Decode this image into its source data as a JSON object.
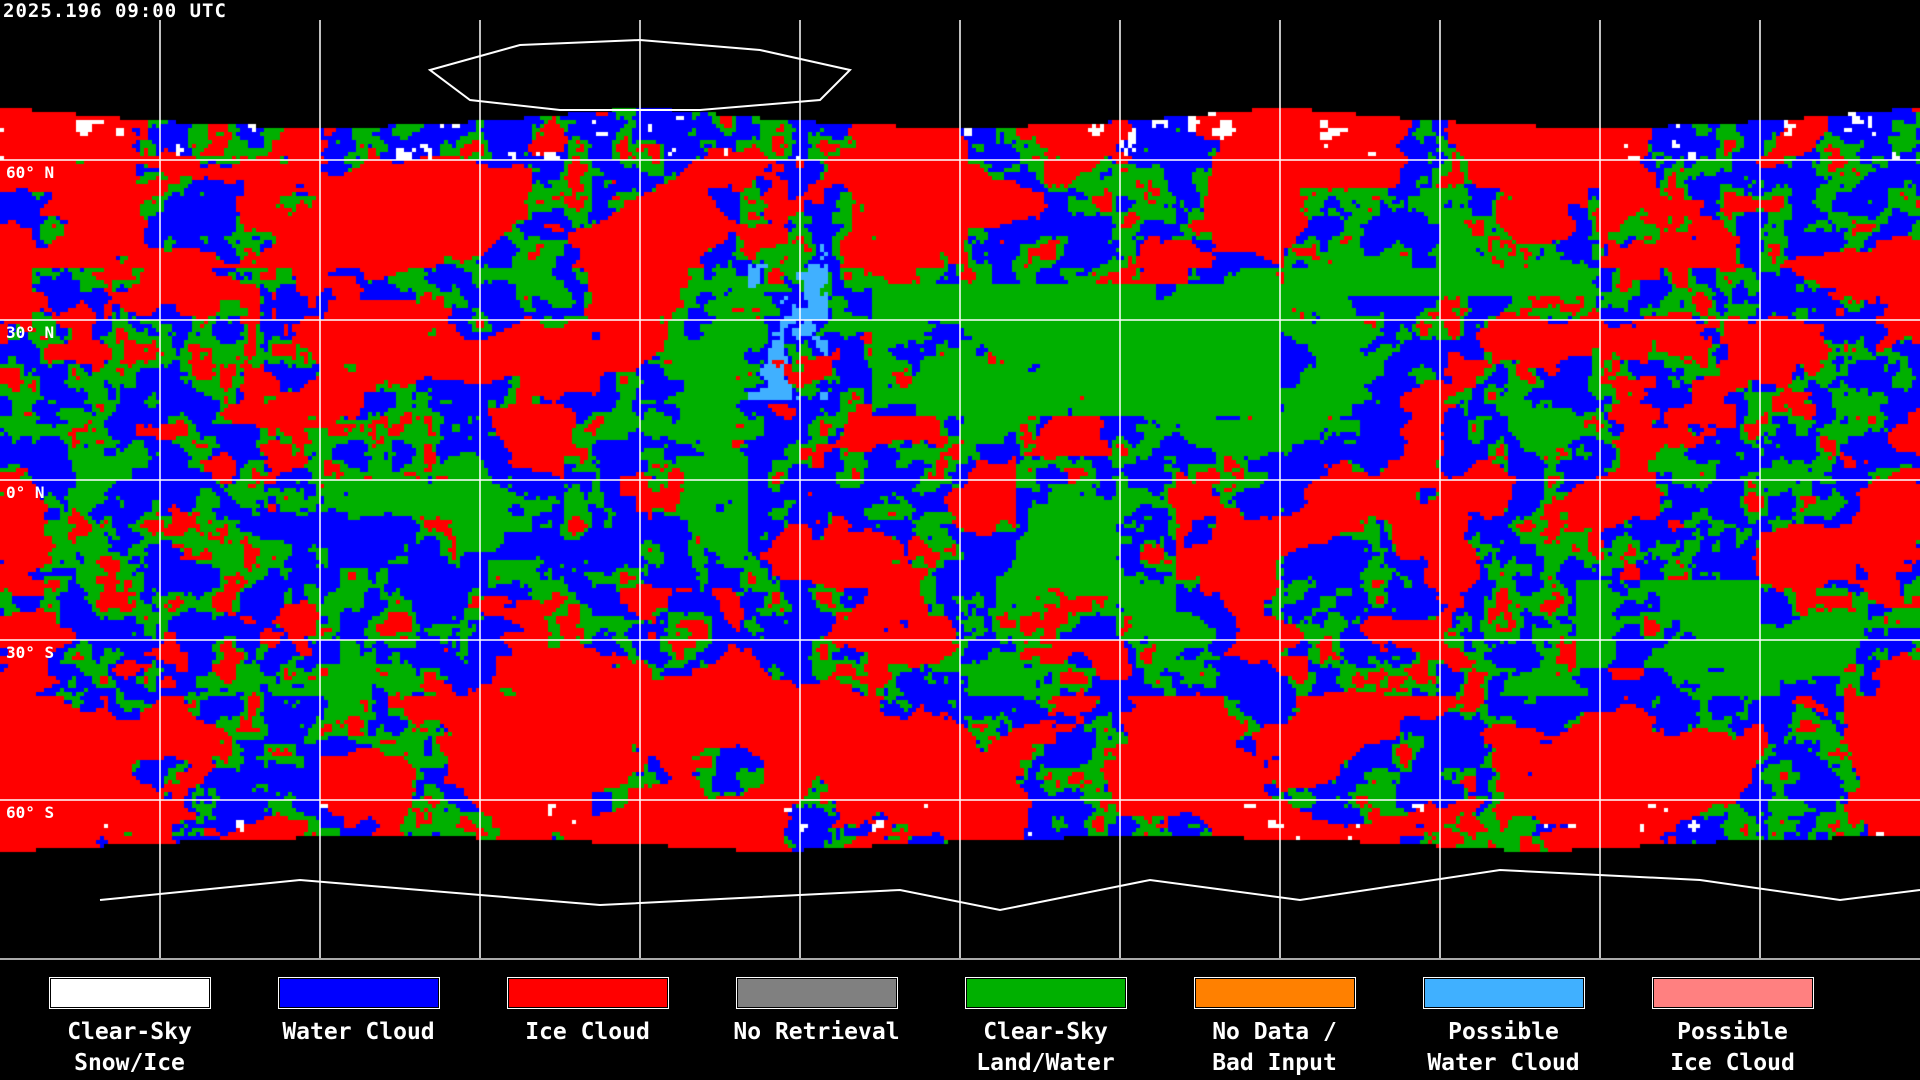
{
  "header": {
    "timestamp": "2025.196 09:00 UTC"
  },
  "map": {
    "lat_labels": [
      "60° N",
      "30° N",
      "0° N",
      "30° S",
      "60° S"
    ],
    "grid_lat_deg": [
      60,
      30,
      0,
      -30,
      -60
    ],
    "grid_lon_deg": [
      -150,
      -120,
      -90,
      -60,
      -30,
      0,
      30,
      60,
      90,
      120,
      150
    ]
  },
  "legend": [
    {
      "line1": "Clear-Sky",
      "line2": "Snow/Ice",
      "color": "#ffffff"
    },
    {
      "line1": "Water Cloud",
      "line2": "",
      "color": "#0000ff"
    },
    {
      "line1": "Ice Cloud",
      "line2": "",
      "color": "#ff0000"
    },
    {
      "line1": "No Retrieval",
      "line2": "",
      "color": "#808080"
    },
    {
      "line1": "Clear-Sky",
      "line2": "Land/Water",
      "color": "#00b000"
    },
    {
      "line1": "No Data /",
      "line2": "Bad Input",
      "color": "#ff8000"
    },
    {
      "line1": "Possible",
      "line2": "Water Cloud",
      "color": "#40b0ff"
    },
    {
      "line1": "Possible",
      "line2": "Ice Cloud",
      "color": "#ff8080"
    }
  ]
}
